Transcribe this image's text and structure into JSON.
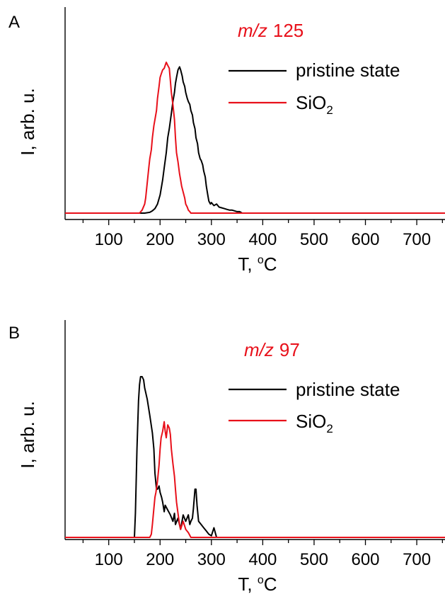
{
  "figure": {
    "background": "#ffffff"
  },
  "chart_data": [
    {
      "type": "line",
      "panel_label": "A",
      "annotation": {
        "prefix": "m/z",
        "number": "125",
        "color": "#e8101a"
      },
      "xlabel": {
        "main": "T, ",
        "sup": "o",
        "unit": "C"
      },
      "ylabel": "I, arb. u.",
      "xlim": [
        15,
        755
      ],
      "ylim": [
        0,
        1.05
      ],
      "x_ticks": [
        100,
        200,
        300,
        400,
        500,
        600,
        700
      ],
      "x_tick_labels": [
        "100",
        "200",
        "300",
        "400",
        "500",
        "600",
        "700"
      ],
      "legend": {
        "position": "top-right",
        "entries": [
          {
            "series": 0,
            "label": "pristine state",
            "sub": ""
          },
          {
            "series": 1,
            "label": "SiO",
            "sub": "2"
          }
        ]
      },
      "series": [
        {
          "name": "pristine state",
          "color": "#000000",
          "x": [
            15,
            170,
            180,
            185,
            190,
            195,
            200,
            205,
            208,
            212,
            215,
            218,
            222,
            225,
            228,
            230,
            232,
            235,
            238,
            240,
            243,
            245,
            248,
            250,
            253,
            255,
            258,
            260,
            263,
            265,
            268,
            270,
            273,
            275,
            278,
            280,
            283,
            285,
            288,
            290,
            293,
            295,
            298,
            300,
            305,
            310,
            315,
            320,
            325,
            330,
            335,
            340,
            345,
            350,
            355,
            360,
            755
          ],
          "y": [
            0,
            0,
            0.005,
            0.015,
            0.03,
            0.06,
            0.12,
            0.22,
            0.3,
            0.4,
            0.5,
            0.56,
            0.66,
            0.74,
            0.8,
            0.86,
            0.9,
            0.95,
            0.97,
            0.95,
            0.91,
            0.87,
            0.84,
            0.8,
            0.76,
            0.74,
            0.72,
            0.68,
            0.65,
            0.6,
            0.56,
            0.5,
            0.46,
            0.4,
            0.36,
            0.35,
            0.32,
            0.28,
            0.24,
            0.18,
            0.12,
            0.08,
            0.06,
            0.07,
            0.05,
            0.06,
            0.04,
            0.035,
            0.03,
            0.025,
            0.02,
            0.02,
            0.015,
            0.01,
            0.01,
            0,
            0
          ]
        },
        {
          "name": "SiO2",
          "color": "#e8101a",
          "x": [
            15,
            160,
            165,
            170,
            172,
            175,
            178,
            180,
            183,
            185,
            188,
            190,
            193,
            195,
            198,
            200,
            202,
            205,
            208,
            210,
            212,
            215,
            218,
            220,
            222,
            225,
            228,
            230,
            232,
            235,
            238,
            240,
            242,
            245,
            248,
            250,
            253,
            255,
            258,
            260,
            265,
            755
          ],
          "y": [
            0,
            0,
            0.02,
            0.06,
            0.1,
            0.2,
            0.3,
            0.36,
            0.42,
            0.5,
            0.58,
            0.62,
            0.68,
            0.76,
            0.84,
            0.9,
            0.92,
            0.95,
            0.96,
            0.98,
            1.0,
            0.98,
            0.96,
            0.88,
            0.8,
            0.72,
            0.62,
            0.5,
            0.4,
            0.34,
            0.26,
            0.22,
            0.18,
            0.14,
            0.1,
            0.06,
            0.04,
            0.02,
            0.01,
            0,
            0,
            0
          ]
        }
      ]
    },
    {
      "type": "line",
      "panel_label": "B",
      "annotation": {
        "prefix": "m/z",
        "number": "97",
        "color": "#e8101a"
      },
      "xlabel": {
        "main": "T, ",
        "sup": "o",
        "unit": "C"
      },
      "ylabel": "I, arb. u.",
      "xlim": [
        15,
        755
      ],
      "ylim": [
        0,
        1.05
      ],
      "x_ticks": [
        100,
        200,
        300,
        400,
        500,
        600,
        700
      ],
      "x_tick_labels": [
        "100",
        "200",
        "300",
        "400",
        "500",
        "600",
        "700"
      ],
      "legend": {
        "position": "top-right",
        "entries": [
          {
            "series": 0,
            "label": "pristine state",
            "sub": ""
          },
          {
            "series": 1,
            "label": "SiO",
            "sub": "2"
          }
        ]
      },
      "series": [
        {
          "name": "pristine state",
          "color": "#000000",
          "x": [
            15,
            150,
            152,
            155,
            158,
            160,
            162,
            165,
            168,
            170,
            175,
            180,
            185,
            188,
            190,
            193,
            195,
            198,
            200,
            203,
            205,
            208,
            210,
            215,
            220,
            225,
            228,
            230,
            235,
            240,
            245,
            250,
            255,
            258,
            260,
            263,
            265,
            268,
            270,
            272,
            275,
            280,
            285,
            290,
            295,
            300,
            305,
            310,
            755
          ],
          "y": [
            0,
            0,
            0.15,
            0.55,
            0.85,
            0.95,
            1.0,
            1.0,
            0.98,
            0.93,
            0.86,
            0.76,
            0.65,
            0.55,
            0.4,
            0.3,
            0.3,
            0.32,
            0.28,
            0.25,
            0.22,
            0.16,
            0.2,
            0.17,
            0.14,
            0.1,
            0.15,
            0.08,
            0.12,
            0.05,
            0.14,
            0.1,
            0.14,
            0.08,
            0.1,
            0.12,
            0.18,
            0.3,
            0.3,
            0.2,
            0.1,
            0.08,
            0.06,
            0.04,
            0.02,
            0.01,
            0.06,
            0,
            0
          ]
        },
        {
          "name": "SiO2",
          "color": "#e8101a",
          "x": [
            15,
            180,
            183,
            185,
            188,
            190,
            192,
            195,
            198,
            200,
            202,
            205,
            208,
            210,
            212,
            215,
            218,
            220,
            222,
            225,
            228,
            230,
            232,
            235,
            238,
            240,
            245,
            250,
            255,
            260,
            755
          ],
          "y": [
            0,
            0,
            0.02,
            0.08,
            0.18,
            0.25,
            0.28,
            0.35,
            0.45,
            0.55,
            0.62,
            0.66,
            0.72,
            0.66,
            0.62,
            0.7,
            0.68,
            0.64,
            0.55,
            0.46,
            0.38,
            0.3,
            0.22,
            0.15,
            0.08,
            0.05,
            0.1,
            0.05,
            0.03,
            0,
            0
          ]
        }
      ]
    }
  ]
}
